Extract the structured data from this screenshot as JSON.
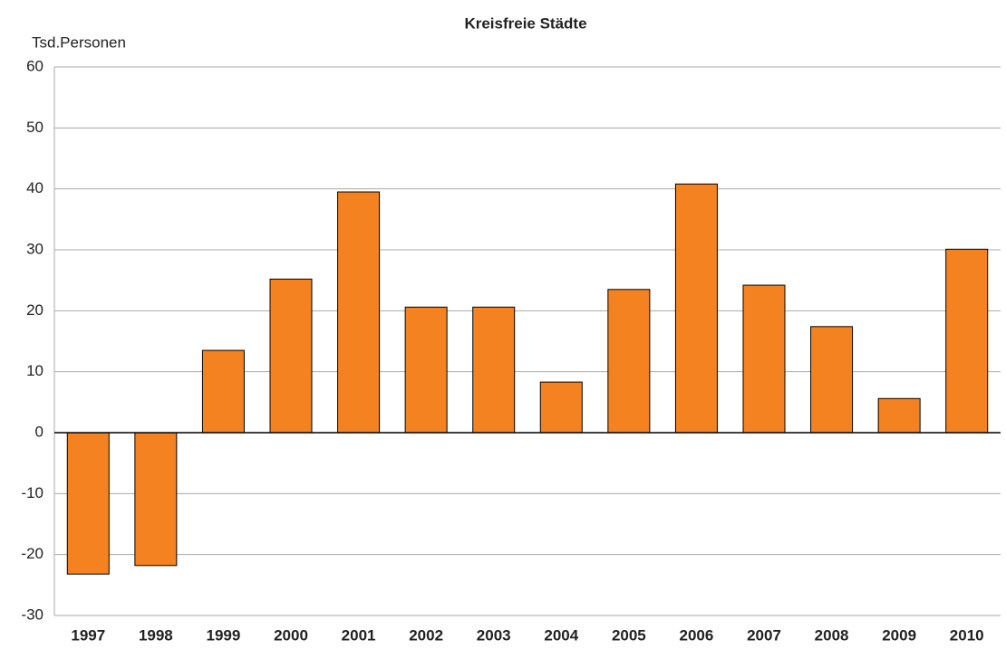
{
  "chart_data": {
    "type": "bar",
    "title": "Kreisfreie Städte",
    "y_label": "Tsd.Personen",
    "categories": [
      "1997",
      "1998",
      "1999",
      "2000",
      "2001",
      "2002",
      "2003",
      "2004",
      "2005",
      "2006",
      "2007",
      "2008",
      "2009",
      "2010"
    ],
    "values": [
      -23.2,
      -21.8,
      13.5,
      25.2,
      39.5,
      20.6,
      20.6,
      8.3,
      23.5,
      40.8,
      24.2,
      17.4,
      5.6,
      30.1
    ],
    "color": "#f58220",
    "ylim": [
      -30,
      60
    ],
    "yticks": [
      -30,
      -20,
      -10,
      0,
      10,
      20,
      30,
      40,
      50,
      60
    ],
    "grid": true
  }
}
